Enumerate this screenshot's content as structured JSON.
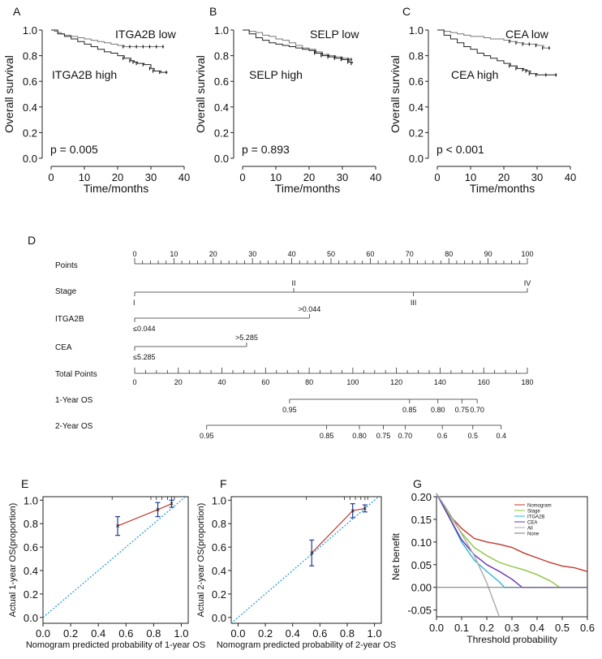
{
  "panel_labels": [
    "A",
    "B",
    "C",
    "D",
    "E",
    "F",
    "G"
  ],
  "chart_data": [
    {
      "id": "A",
      "type": "line",
      "xlabel": "Time/months",
      "ylabel": "Overall survival",
      "xlim": [
        0,
        40
      ],
      "ylim": [
        0,
        1
      ],
      "xticks": [
        "0",
        "10",
        "20",
        "30",
        "40"
      ],
      "yticks": [
        "0.0",
        "0.2",
        "0.4",
        "0.6",
        "0.8",
        "1.0"
      ],
      "pvalue": "p = 0.005",
      "series": [
        {
          "name": "ITGA2B low",
          "x": [
            0,
            1,
            2,
            3,
            4,
            6,
            8,
            10,
            12,
            14,
            16,
            18,
            20,
            22,
            24,
            26,
            28,
            30,
            32,
            34
          ],
          "y": [
            1.0,
            0.99,
            0.98,
            0.97,
            0.96,
            0.95,
            0.94,
            0.93,
            0.92,
            0.91,
            0.9,
            0.89,
            0.88,
            0.87,
            0.87,
            0.87,
            0.87,
            0.87,
            0.87,
            0.87
          ]
        },
        {
          "name": "ITGA2B high",
          "x": [
            0,
            2,
            4,
            6,
            8,
            10,
            12,
            14,
            16,
            18,
            20,
            22,
            24,
            25,
            26,
            28,
            30,
            31,
            33,
            35
          ],
          "y": [
            1.0,
            0.97,
            0.95,
            0.93,
            0.91,
            0.89,
            0.87,
            0.85,
            0.83,
            0.82,
            0.8,
            0.78,
            0.76,
            0.75,
            0.74,
            0.73,
            0.7,
            0.68,
            0.67,
            0.67
          ]
        }
      ]
    },
    {
      "id": "B",
      "type": "line",
      "xlabel": "Time/months",
      "ylabel": "Overall survival",
      "xlim": [
        0,
        40
      ],
      "ylim": [
        0,
        1
      ],
      "xticks": [
        "0",
        "10",
        "20",
        "30",
        "40"
      ],
      "yticks": [
        "0.0",
        "0.2",
        "0.4",
        "0.6",
        "0.8",
        "1.0"
      ],
      "pvalue": "p = 0.893",
      "series": [
        {
          "name": "SELP low",
          "x": [
            0,
            2,
            4,
            6,
            8,
            10,
            12,
            14,
            16,
            18,
            20,
            22,
            24,
            26,
            28,
            30,
            32,
            33
          ],
          "y": [
            1.0,
            0.99,
            0.98,
            0.96,
            0.95,
            0.93,
            0.92,
            0.9,
            0.88,
            0.86,
            0.85,
            0.83,
            0.81,
            0.8,
            0.79,
            0.78,
            0.77,
            0.77
          ]
        },
        {
          "name": "SELP high",
          "x": [
            0,
            2,
            4,
            6,
            8,
            10,
            12,
            14,
            16,
            18,
            20,
            22,
            24,
            26,
            28,
            30,
            32,
            33
          ],
          "y": [
            1.0,
            0.97,
            0.94,
            0.92,
            0.9,
            0.89,
            0.88,
            0.87,
            0.86,
            0.85,
            0.84,
            0.82,
            0.8,
            0.79,
            0.78,
            0.77,
            0.75,
            0.74
          ]
        }
      ]
    },
    {
      "id": "C",
      "type": "line",
      "xlabel": "Time/months",
      "ylabel": "Overall survival",
      "xlim": [
        0,
        40
      ],
      "ylim": [
        0,
        1
      ],
      "xticks": [
        "0",
        "10",
        "20",
        "30",
        "40"
      ],
      "yticks": [
        "0.0",
        "0.2",
        "0.4",
        "0.6",
        "0.8",
        "1.0"
      ],
      "pvalue": "p < 0.001",
      "series": [
        {
          "name": "CEA low",
          "x": [
            0,
            2,
            4,
            6,
            8,
            10,
            12,
            14,
            16,
            18,
            20,
            22,
            24,
            26,
            28,
            30,
            32,
            34
          ],
          "y": [
            1.0,
            0.99,
            0.98,
            0.97,
            0.96,
            0.95,
            0.95,
            0.94,
            0.93,
            0.93,
            0.92,
            0.91,
            0.9,
            0.89,
            0.89,
            0.88,
            0.86,
            0.86
          ]
        },
        {
          "name": "CEA high",
          "x": [
            0,
            2,
            4,
            6,
            8,
            10,
            12,
            14,
            16,
            18,
            20,
            22,
            24,
            26,
            27,
            28,
            30,
            33,
            36
          ],
          "y": [
            1.0,
            0.96,
            0.93,
            0.9,
            0.87,
            0.85,
            0.82,
            0.8,
            0.78,
            0.76,
            0.74,
            0.72,
            0.7,
            0.69,
            0.68,
            0.66,
            0.65,
            0.65,
            0.65
          ]
        }
      ]
    },
    {
      "id": "E",
      "type": "scatter",
      "xlabel": "Nomogram predicted probability of 1-year OS",
      "ylabel": "Actual 1-year OS(proportion)",
      "xlim": [
        0,
        1.05
      ],
      "ylim": [
        -0.05,
        1.03
      ],
      "xticks": [
        "0.0",
        "0.2",
        "0.4",
        "0.6",
        "0.8",
        "1.0"
      ],
      "yticks": [
        "0.0",
        "0.2",
        "0.4",
        "0.6",
        "0.8",
        "1.0"
      ],
      "points": {
        "x": [
          0.54,
          0.83,
          0.93
        ],
        "y": [
          0.78,
          0.92,
          0.97
        ],
        "lo": [
          0.7,
          0.86,
          0.94
        ],
        "hi": [
          0.86,
          0.98,
          1.0
        ]
      }
    },
    {
      "id": "F",
      "type": "scatter",
      "xlabel": "Nomogram predicted probability of 2-year OS",
      "ylabel": "Actual 2-year OS(proportion)",
      "xlim": [
        -0.05,
        1.05
      ],
      "ylim": [
        -0.05,
        1.03
      ],
      "xticks": [
        "0.0",
        "0.2",
        "0.4",
        "0.6",
        "0.8",
        "1.0"
      ],
      "yticks": [
        "0.0",
        "0.2",
        "0.4",
        "0.6",
        "0.8",
        "1.0"
      ],
      "points": {
        "x": [
          0.54,
          0.84,
          0.93
        ],
        "y": [
          0.55,
          0.91,
          0.93
        ],
        "lo": [
          0.44,
          0.85,
          0.9
        ],
        "hi": [
          0.66,
          0.97,
          0.96
        ]
      }
    },
    {
      "id": "G",
      "type": "line",
      "xlabel": "Threshold probability",
      "ylabel": "Net benefit",
      "xlim": [
        0,
        0.6
      ],
      "ylim": [
        -0.065,
        0.2
      ],
      "xticks": [
        "0.0",
        "0.1",
        "0.2",
        "0.3",
        "0.4",
        "0.5",
        "0.6"
      ],
      "yticks": [
        "-0.05",
        "0.00",
        "0.05",
        "0.10",
        "0.15",
        "0.20"
      ],
      "legend": "top-right",
      "series": [
        {
          "name": "Nomogram",
          "color": "#c0392b",
          "x": [
            0,
            0.05,
            0.1,
            0.15,
            0.2,
            0.25,
            0.3,
            0.35,
            0.4,
            0.45,
            0.5,
            0.55,
            0.6
          ],
          "y": [
            0.207,
            0.16,
            0.13,
            0.108,
            0.1,
            0.095,
            0.088,
            0.075,
            0.065,
            0.055,
            0.047,
            0.043,
            0.035
          ]
        },
        {
          "name": "Stage",
          "color": "#8cc63f",
          "x": [
            0,
            0.05,
            0.1,
            0.15,
            0.2,
            0.25,
            0.3,
            0.35,
            0.4,
            0.45,
            0.49,
            0.5,
            0.6
          ],
          "y": [
            0.207,
            0.16,
            0.12,
            0.088,
            0.07,
            0.055,
            0.046,
            0.038,
            0.028,
            0.015,
            0.0,
            0.0,
            0.0
          ]
        },
        {
          "name": "ITGA2B",
          "color": "#29b6d8",
          "x": [
            0,
            0.05,
            0.1,
            0.15,
            0.2,
            0.25,
            0.27,
            0.3,
            0.6
          ],
          "y": [
            0.207,
            0.155,
            0.1,
            0.06,
            0.035,
            0.012,
            0.0,
            0.0,
            0.0
          ]
        },
        {
          "name": "CEA",
          "color": "#6a2fb3",
          "x": [
            0,
            0.05,
            0.1,
            0.15,
            0.2,
            0.25,
            0.3,
            0.34,
            0.4,
            0.6
          ],
          "y": [
            0.207,
            0.155,
            0.105,
            0.072,
            0.05,
            0.035,
            0.018,
            0.0,
            0.0,
            0.0
          ]
        },
        {
          "name": "All",
          "color": "#aaaaaa",
          "x": [
            0,
            0.05,
            0.1,
            0.15,
            0.2,
            0.25
          ],
          "y": [
            0.207,
            0.165,
            0.118,
            0.07,
            0.01,
            -0.065
          ]
        },
        {
          "name": "None",
          "color": "#777777",
          "x": [
            0,
            0.6
          ],
          "y": [
            0,
            0
          ]
        }
      ]
    }
  ],
  "nomogram": {
    "rows": [
      "Points",
      "Stage",
      "ITGA2B",
      "CEA",
      "Total Points",
      "1-Year OS",
      "2-Year OS"
    ],
    "points_scale": {
      "min": 0,
      "max": 100,
      "labels": [
        "0",
        "10",
        "20",
        "30",
        "40",
        "50",
        "60",
        "70",
        "80",
        "90",
        "100"
      ]
    },
    "stage": [
      {
        "label": "I",
        "points": 0,
        "side": "below"
      },
      {
        "label": "II",
        "points": 40.5,
        "side": "above"
      },
      {
        "label": "III",
        "points": 71,
        "side": "below"
      },
      {
        "label": "IV",
        "points": 100,
        "side": "above"
      }
    ],
    "itga2b": [
      {
        "label": "≤0.044",
        "points": 0,
        "side": "below"
      },
      {
        "label": ">0.044",
        "points": 44.5,
        "side": "above"
      }
    ],
    "cea": [
      {
        "label": "≤5.285",
        "points": 0,
        "side": "below"
      },
      {
        "label": ">5.285",
        "points": 28.5,
        "side": "above"
      }
    ],
    "total_scale": {
      "min": 0,
      "max": 180,
      "labels": [
        "0",
        "20",
        "40",
        "60",
        "80",
        "100",
        "120",
        "140",
        "160",
        "180"
      ]
    },
    "os1": [
      {
        "label": "0.95",
        "total": 71
      },
      {
        "label": "0.85",
        "total": 126
      },
      {
        "label": "0.80",
        "total": 139
      },
      {
        "label": "0.75",
        "total": 150
      },
      {
        "label": "0.70",
        "total": 157
      }
    ],
    "os2": [
      {
        "label": "0.95",
        "total": 33
      },
      {
        "label": "0.85",
        "total": 88
      },
      {
        "label": "0.80",
        "total": 103
      },
      {
        "label": "0.75",
        "total": 114
      },
      {
        "label": "0.70",
        "total": 124
      },
      {
        "label": "0.6",
        "total": 141
      },
      {
        "label": "0.5",
        "total": 155
      },
      {
        "label": "0.4",
        "total": 168
      }
    ]
  }
}
